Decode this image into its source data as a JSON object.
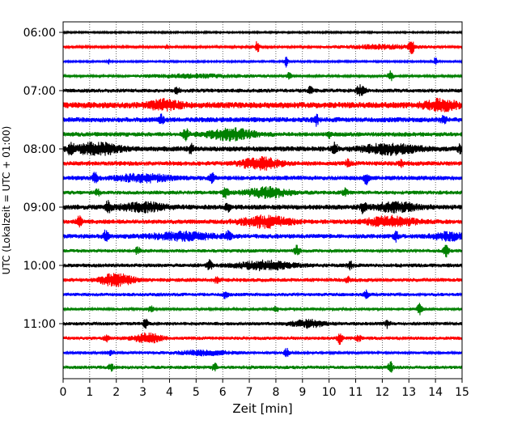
{
  "chart_data": {
    "type": "line",
    "title": "",
    "xlabel": "Zeit  [min]",
    "ylabel": "UTC (Lokalzeit = UTC + 01:00)",
    "xlim": [
      0,
      15
    ],
    "x_ticks": [
      0,
      1,
      2,
      3,
      4,
      5,
      6,
      7,
      8,
      9,
      10,
      11,
      12,
      13,
      14,
      15
    ],
    "x_tick_labels": [
      "0",
      "1",
      "2",
      "3",
      "4",
      "5",
      "6",
      "7",
      "8",
      "9",
      "10",
      "11",
      "12",
      "13",
      "14",
      "15"
    ],
    "y_ticks": [
      "06:00",
      "07:00",
      "08:00",
      "09:00",
      "10:00",
      "11:00"
    ],
    "y_tick_labels": [
      "06:00",
      "07:00",
      "08:00",
      "09:00",
      "10:00",
      "11:00"
    ],
    "grid": "vertical dotted",
    "legend": "none",
    "color_cycle": [
      "#000000",
      "#ff0000",
      "#0000ff",
      "#008000"
    ],
    "series": [
      {
        "start": "06:00",
        "color": "#000000",
        "noise": 0.15,
        "events": []
      },
      {
        "start": "06:15",
        "color": "#ff0000",
        "noise": 0.2,
        "events": [
          {
            "t": 3.9,
            "a": 0.5,
            "w": 0.05
          },
          {
            "t": 7.3,
            "a": 1.0,
            "w": 0.08
          },
          {
            "t": 13.1,
            "a": 1.0,
            "w": 0.1
          },
          {
            "t": 12.0,
            "a": 0.35,
            "w": 1.5
          }
        ]
      },
      {
        "start": "06:30",
        "color": "#0000ff",
        "noise": 0.15,
        "events": [
          {
            "t": 1.7,
            "a": 0.5,
            "w": 0.05
          },
          {
            "t": 8.4,
            "a": 1.1,
            "w": 0.06
          },
          {
            "t": 14.0,
            "a": 0.8,
            "w": 0.06
          }
        ]
      },
      {
        "start": "06:45",
        "color": "#008000",
        "noise": 0.2,
        "events": [
          {
            "t": 5.0,
            "a": 0.3,
            "w": 2.0
          },
          {
            "t": 8.5,
            "a": 0.6,
            "w": 0.08
          },
          {
            "t": 12.3,
            "a": 1.0,
            "w": 0.1
          }
        ]
      },
      {
        "start": "07:00",
        "color": "#000000",
        "noise": 0.35,
        "events": [
          {
            "t": 4.3,
            "a": 0.6,
            "w": 0.1
          },
          {
            "t": 9.3,
            "a": 0.6,
            "w": 0.1
          },
          {
            "t": 11.2,
            "a": 1.1,
            "w": 0.15
          }
        ]
      },
      {
        "start": "07:15",
        "color": "#ff0000",
        "noise": 0.55,
        "events": [
          {
            "t": 3.8,
            "a": 0.7,
            "w": 0.6
          },
          {
            "t": 14.2,
            "a": 0.8,
            "w": 0.6
          }
        ]
      },
      {
        "start": "07:30",
        "color": "#0000ff",
        "noise": 0.45,
        "events": [
          {
            "t": 3.7,
            "a": 0.7,
            "w": 0.1
          },
          {
            "t": 9.5,
            "a": 1.0,
            "w": 0.1
          },
          {
            "t": 14.3,
            "a": 0.6,
            "w": 0.1
          }
        ]
      },
      {
        "start": "07:45",
        "color": "#008000",
        "noise": 0.4,
        "events": [
          {
            "t": 4.6,
            "a": 1.0,
            "w": 0.12
          },
          {
            "t": 6.3,
            "a": 0.9,
            "w": 0.9
          },
          {
            "t": 10.0,
            "a": 0.5,
            "w": 0.1
          }
        ]
      },
      {
        "start": "08:00",
        "color": "#000000",
        "noise": 0.45,
        "events": [
          {
            "t": 0.3,
            "a": 1.2,
            "w": 0.1
          },
          {
            "t": 1.3,
            "a": 1.0,
            "w": 0.8
          },
          {
            "t": 4.8,
            "a": 0.7,
            "w": 0.1
          },
          {
            "t": 10.2,
            "a": 1.1,
            "w": 0.1
          },
          {
            "t": 12.3,
            "a": 0.8,
            "w": 1.0
          },
          {
            "t": 14.9,
            "a": 0.6,
            "w": 0.1
          }
        ]
      },
      {
        "start": "08:15",
        "color": "#ff0000",
        "noise": 0.4,
        "events": [
          {
            "t": 7.4,
            "a": 1.0,
            "w": 0.7
          },
          {
            "t": 10.7,
            "a": 0.6,
            "w": 0.1
          },
          {
            "t": 12.7,
            "a": 0.6,
            "w": 0.1
          }
        ]
      },
      {
        "start": "08:30",
        "color": "#0000ff",
        "noise": 0.4,
        "events": [
          {
            "t": 1.2,
            "a": 0.8,
            "w": 0.1
          },
          {
            "t": 3.0,
            "a": 0.6,
            "w": 1.0
          },
          {
            "t": 5.6,
            "a": 0.7,
            "w": 0.1
          },
          {
            "t": 11.4,
            "a": 1.0,
            "w": 0.1
          }
        ]
      },
      {
        "start": "08:45",
        "color": "#008000",
        "noise": 0.35,
        "events": [
          {
            "t": 1.3,
            "a": 0.6,
            "w": 0.1
          },
          {
            "t": 6.1,
            "a": 1.0,
            "w": 0.1
          },
          {
            "t": 7.7,
            "a": 0.8,
            "w": 0.8
          },
          {
            "t": 10.6,
            "a": 0.6,
            "w": 0.1
          }
        ]
      },
      {
        "start": "09:00",
        "color": "#000000",
        "noise": 0.45,
        "events": [
          {
            "t": 1.7,
            "a": 1.0,
            "w": 0.1
          },
          {
            "t": 3.0,
            "a": 0.7,
            "w": 0.8
          },
          {
            "t": 6.2,
            "a": 0.8,
            "w": 0.1
          },
          {
            "t": 11.3,
            "a": 1.0,
            "w": 0.1
          },
          {
            "t": 12.5,
            "a": 0.7,
            "w": 0.8
          }
        ]
      },
      {
        "start": "09:15",
        "color": "#ff0000",
        "noise": 0.4,
        "events": [
          {
            "t": 0.6,
            "a": 0.8,
            "w": 0.1
          },
          {
            "t": 7.6,
            "a": 0.9,
            "w": 0.9
          },
          {
            "t": 12.3,
            "a": 0.8,
            "w": 0.9
          }
        ]
      },
      {
        "start": "09:30",
        "color": "#0000ff",
        "noise": 0.4,
        "events": [
          {
            "t": 1.6,
            "a": 0.9,
            "w": 0.1
          },
          {
            "t": 4.5,
            "a": 0.6,
            "w": 1.2
          },
          {
            "t": 6.2,
            "a": 0.7,
            "w": 0.1
          },
          {
            "t": 12.5,
            "a": 0.8,
            "w": 0.1
          },
          {
            "t": 14.5,
            "a": 0.6,
            "w": 0.6
          }
        ]
      },
      {
        "start": "09:45",
        "color": "#008000",
        "noise": 0.3,
        "events": [
          {
            "t": 2.8,
            "a": 0.6,
            "w": 0.1
          },
          {
            "t": 8.8,
            "a": 0.9,
            "w": 0.1
          },
          {
            "t": 14.4,
            "a": 0.9,
            "w": 0.1
          }
        ]
      },
      {
        "start": "10:00",
        "color": "#000000",
        "noise": 0.35,
        "events": [
          {
            "t": 5.5,
            "a": 0.8,
            "w": 0.1
          },
          {
            "t": 7.6,
            "a": 0.7,
            "w": 1.0
          },
          {
            "t": 10.8,
            "a": 0.6,
            "w": 0.1
          }
        ]
      },
      {
        "start": "10:15",
        "color": "#ff0000",
        "noise": 0.35,
        "events": [
          {
            "t": 2.0,
            "a": 1.0,
            "w": 0.6
          },
          {
            "t": 5.8,
            "a": 0.7,
            "w": 0.1
          },
          {
            "t": 10.7,
            "a": 0.5,
            "w": 0.1
          }
        ]
      },
      {
        "start": "10:30",
        "color": "#0000ff",
        "noise": 0.3,
        "events": [
          {
            "t": 6.1,
            "a": 0.6,
            "w": 0.1
          },
          {
            "t": 11.4,
            "a": 0.6,
            "w": 0.1
          }
        ]
      },
      {
        "start": "10:45",
        "color": "#008000",
        "noise": 0.25,
        "events": [
          {
            "t": 3.3,
            "a": 0.5,
            "w": 0.1
          },
          {
            "t": 8.0,
            "a": 0.5,
            "w": 0.1
          },
          {
            "t": 13.4,
            "a": 0.9,
            "w": 0.1
          }
        ]
      },
      {
        "start": "11:00",
        "color": "#000000",
        "noise": 0.3,
        "events": [
          {
            "t": 3.1,
            "a": 0.7,
            "w": 0.1
          },
          {
            "t": 9.2,
            "a": 0.6,
            "w": 0.6
          },
          {
            "t": 12.2,
            "a": 0.7,
            "w": 0.1
          }
        ]
      },
      {
        "start": "11:15",
        "color": "#ff0000",
        "noise": 0.3,
        "events": [
          {
            "t": 1.6,
            "a": 0.6,
            "w": 0.1
          },
          {
            "t": 3.2,
            "a": 0.8,
            "w": 0.5
          },
          {
            "t": 10.4,
            "a": 0.9,
            "w": 0.1
          },
          {
            "t": 11.1,
            "a": 0.6,
            "w": 0.1
          }
        ]
      },
      {
        "start": "11:30",
        "color": "#0000ff",
        "noise": 0.25,
        "events": [
          {
            "t": 1.8,
            "a": 0.5,
            "w": 0.1
          },
          {
            "t": 5.3,
            "a": 0.4,
            "w": 1.0
          },
          {
            "t": 8.4,
            "a": 0.7,
            "w": 0.1
          }
        ]
      },
      {
        "start": "11:45",
        "color": "#008000",
        "noise": 0.3,
        "events": [
          {
            "t": 1.8,
            "a": 0.5,
            "w": 0.1
          },
          {
            "t": 5.7,
            "a": 0.6,
            "w": 0.1
          },
          {
            "t": 12.3,
            "a": 0.9,
            "w": 0.1
          }
        ]
      }
    ]
  }
}
